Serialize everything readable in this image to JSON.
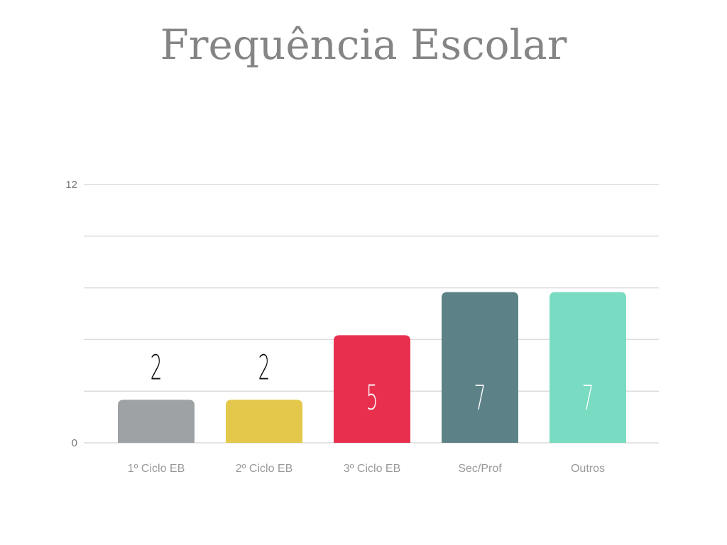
{
  "chart_data": {
    "type": "bar",
    "title": "Frequência Escolar",
    "categories": [
      "1º Ciclo EB",
      "2º Ciclo EB",
      "3º Ciclo EB",
      "Sec/Prof",
      "Outros"
    ],
    "values": [
      2,
      2,
      5,
      7,
      7
    ],
    "colors": [
      "#9ea2a5",
      "#e4c84b",
      "#e8304e",
      "#5c8288",
      "#79dbc2"
    ],
    "ylim": [
      0,
      12
    ],
    "yticks": [
      0,
      {
        "value": 2.4,
        "label": null
      },
      {
        "value": 4.8,
        "label": null
      },
      {
        "value": 7.2,
        "label": null
      },
      {
        "value": 9.6,
        "label": null
      },
      12
    ],
    "grid": true
  }
}
